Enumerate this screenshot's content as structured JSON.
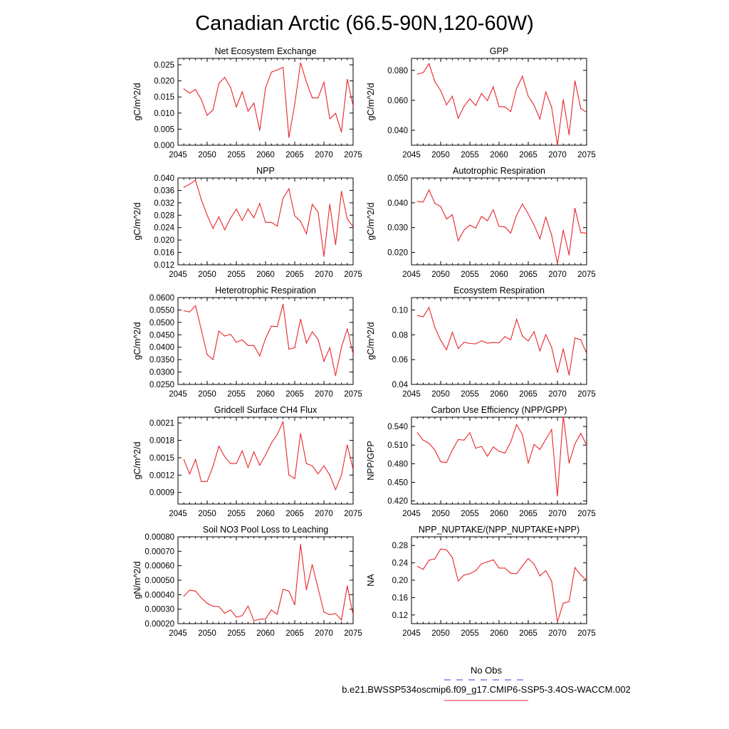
{
  "title": "Canadian Arctic (66.5-90N,120-60W)",
  "colors": {
    "model_line": "#e8262a",
    "obs_line": "#3b3bd6",
    "axis": "#000000"
  },
  "legend": {
    "obs_label": "No Obs",
    "model_label": "b.e21.BWSSP534oscmip6.f09_g17.CMIP6-SSP5-3.4OS-WACCM.002"
  },
  "chart_data": [
    {
      "type": "line",
      "title": "Net Ecosystem Exchange",
      "ylabel": "gC/m^2/d",
      "xlim": [
        2045,
        2075
      ],
      "ylim": [
        0.0,
        0.027
      ],
      "xticks": [
        "2045",
        "2050",
        "2055",
        "2060",
        "2065",
        "2070",
        "2075"
      ],
      "yticks": [
        0.0,
        0.005,
        0.01,
        0.015,
        0.02,
        0.025
      ],
      "ytick_labels": [
        "0.000",
        "0.005",
        "0.010",
        "0.015",
        "0.020",
        "0.025"
      ],
      "x": [
        2046,
        2047,
        2048,
        2049,
        2050,
        2051,
        2052,
        2053,
        2054,
        2055,
        2056,
        2057,
        2058,
        2059,
        2060,
        2061,
        2062,
        2063,
        2064,
        2065,
        2066,
        2067,
        2068,
        2069,
        2070,
        2071,
        2072,
        2073,
        2074,
        2075
      ],
      "values": [
        0.0175,
        0.0162,
        0.0173,
        0.0142,
        0.0093,
        0.011,
        0.0192,
        0.0211,
        0.018,
        0.0119,
        0.0166,
        0.0106,
        0.0131,
        0.0046,
        0.0178,
        0.0227,
        0.0234,
        0.0242,
        0.0024,
        0.0128,
        0.0256,
        0.0197,
        0.0147,
        0.0147,
        0.0196,
        0.0082,
        0.0099,
        0.0041,
        0.0205,
        0.0122
      ]
    },
    {
      "type": "line",
      "title": "GPP",
      "ylabel": "gC/m^2/d",
      "xlim": [
        2045,
        2075
      ],
      "ylim": [
        0.03,
        0.088
      ],
      "xticks": [
        "2045",
        "2050",
        "2055",
        "2060",
        "2065",
        "2070",
        "2075"
      ],
      "yticks": [
        0.04,
        0.06,
        0.08
      ],
      "ytick_labels": [
        "0.040",
        "0.060",
        "0.080"
      ],
      "x": [
        2046,
        2047,
        2048,
        2049,
        2050,
        2051,
        2052,
        2053,
        2054,
        2055,
        2056,
        2057,
        2058,
        2059,
        2060,
        2061,
        2062,
        2063,
        2064,
        2065,
        2066,
        2067,
        2068,
        2069,
        2070,
        2071,
        2072,
        2073,
        2074,
        2075
      ],
      "values": [
        0.0775,
        0.0785,
        0.0845,
        0.0725,
        0.0665,
        0.057,
        0.0627,
        0.048,
        0.056,
        0.061,
        0.0565,
        0.0645,
        0.0598,
        0.069,
        0.0557,
        0.0557,
        0.0525,
        0.068,
        0.076,
        0.0627,
        0.0567,
        0.0475,
        0.0655,
        0.0555,
        0.03,
        0.0605,
        0.037,
        0.073,
        0.0545,
        0.052
      ]
    },
    {
      "type": "line",
      "title": "NPP",
      "ylabel": "gC/m^2/d",
      "xlim": [
        2045,
        2075
      ],
      "ylim": [
        0.012,
        0.04
      ],
      "xticks": [
        "2045",
        "2050",
        "2055",
        "2060",
        "2065",
        "2070",
        "2075"
      ],
      "yticks": [
        0.012,
        0.016,
        0.02,
        0.024,
        0.028,
        0.032,
        0.036,
        0.04
      ],
      "ytick_labels": [
        "0.012",
        "0.016",
        "0.020",
        "0.024",
        "0.028",
        "0.032",
        "0.036",
        "0.040"
      ],
      "x": [
        2046,
        2047,
        2048,
        2049,
        2050,
        2051,
        2052,
        2053,
        2054,
        2055,
        2056,
        2057,
        2058,
        2059,
        2060,
        2061,
        2062,
        2063,
        2064,
        2065,
        2066,
        2067,
        2068,
        2069,
        2070,
        2071,
        2072,
        2073,
        2074,
        2075
      ],
      "values": [
        0.037,
        0.038,
        0.0393,
        0.033,
        0.028,
        0.0237,
        0.0275,
        0.0233,
        0.027,
        0.03,
        0.0263,
        0.03,
        0.0272,
        0.0318,
        0.0257,
        0.0257,
        0.0245,
        0.0335,
        0.0365,
        0.0278,
        0.026,
        0.022,
        0.0315,
        0.029,
        0.0147,
        0.0315,
        0.0185,
        0.0357,
        0.0268,
        0.0243
      ]
    },
    {
      "type": "line",
      "title": "Autotrophic Respiration",
      "ylabel": "gC/m^2/d",
      "xlim": [
        2045,
        2075
      ],
      "ylim": [
        0.015,
        0.05
      ],
      "xticks": [
        "2045",
        "2050",
        "2055",
        "2060",
        "2065",
        "2070",
        "2075"
      ],
      "yticks": [
        0.02,
        0.03,
        0.04,
        0.05
      ],
      "ytick_labels": [
        "0.020",
        "0.030",
        "0.040",
        "0.050"
      ],
      "x": [
        2046,
        2047,
        2048,
        2049,
        2050,
        2051,
        2052,
        2053,
        2054,
        2055,
        2056,
        2057,
        2058,
        2059,
        2060,
        2061,
        2062,
        2063,
        2064,
        2065,
        2066,
        2067,
        2068,
        2069,
        2070,
        2071,
        2072,
        2073,
        2074,
        2075
      ],
      "values": [
        0.0405,
        0.0403,
        0.0452,
        0.0398,
        0.0385,
        0.0335,
        0.0352,
        0.0247,
        0.029,
        0.031,
        0.0298,
        0.0345,
        0.0328,
        0.0372,
        0.0305,
        0.0303,
        0.0278,
        0.035,
        0.0395,
        0.0355,
        0.031,
        0.0255,
        0.0342,
        0.027,
        0.0155,
        0.029,
        0.019,
        0.0378,
        0.028,
        0.0277
      ]
    },
    {
      "type": "line",
      "title": "Heterotrophic Respiration",
      "ylabel": "gC/m^2/d",
      "xlim": [
        2045,
        2075
      ],
      "ylim": [
        0.025,
        0.06
      ],
      "xticks": [
        "2045",
        "2050",
        "2055",
        "2060",
        "2065",
        "2070",
        "2075"
      ],
      "yticks": [
        0.025,
        0.03,
        0.035,
        0.04,
        0.045,
        0.05,
        0.055,
        0.06
      ],
      "ytick_labels": [
        "0.0250",
        "0.0300",
        "0.0350",
        "0.0400",
        "0.0450",
        "0.0500",
        "0.0550",
        "0.0600"
      ],
      "x": [
        2046,
        2047,
        2048,
        2049,
        2050,
        2051,
        2052,
        2053,
        2054,
        2055,
        2056,
        2057,
        2058,
        2059,
        2060,
        2061,
        2062,
        2063,
        2064,
        2065,
        2066,
        2067,
        2068,
        2069,
        2070,
        2071,
        2072,
        2073,
        2074,
        2075
      ],
      "values": [
        0.0547,
        0.0542,
        0.0567,
        0.047,
        0.037,
        0.035,
        0.0465,
        0.0445,
        0.0452,
        0.042,
        0.043,
        0.0407,
        0.0407,
        0.0365,
        0.0435,
        0.0485,
        0.0483,
        0.0573,
        0.0392,
        0.0398,
        0.0513,
        0.0417,
        0.0462,
        0.0432,
        0.0343,
        0.0398,
        0.0285,
        0.04,
        0.0473,
        0.0373
      ]
    },
    {
      "type": "line",
      "title": "Ecosystem Respiration",
      "ylabel": "gC/m^2/d",
      "xlim": [
        2045,
        2075
      ],
      "ylim": [
        0.04,
        0.11
      ],
      "xticks": [
        "2045",
        "2050",
        "2055",
        "2060",
        "2065",
        "2070",
        "2075"
      ],
      "yticks": [
        0.04,
        0.06,
        0.08,
        0.1
      ],
      "ytick_labels": [
        "0.04",
        "0.06",
        "0.08",
        "0.10"
      ],
      "x": [
        2046,
        2047,
        2048,
        2049,
        2050,
        2051,
        2052,
        2053,
        2054,
        2055,
        2056,
        2057,
        2058,
        2059,
        2060,
        2061,
        2062,
        2063,
        2064,
        2065,
        2066,
        2067,
        2068,
        2069,
        2070,
        2071,
        2072,
        2073,
        2074,
        2075
      ],
      "values": [
        0.0955,
        0.0945,
        0.102,
        0.086,
        0.0755,
        0.068,
        0.082,
        0.069,
        0.074,
        0.073,
        0.0727,
        0.0752,
        0.0732,
        0.0738,
        0.0735,
        0.0785,
        0.076,
        0.0925,
        0.079,
        0.075,
        0.0825,
        0.067,
        0.0802,
        0.07,
        0.0495,
        0.0688,
        0.0475,
        0.0775,
        0.076,
        0.065
      ]
    },
    {
      "type": "line",
      "title": "Gridcell Surface CH4 Flux",
      "ylabel": "gC/m^2/d",
      "xlim": [
        2045,
        2075
      ],
      "ylim": [
        0.0007,
        0.0022
      ],
      "xticks": [
        "2045",
        "2050",
        "2055",
        "2060",
        "2065",
        "2070",
        "2075"
      ],
      "yticks": [
        0.0009,
        0.0012,
        0.0015,
        0.0018,
        0.0021
      ],
      "ytick_labels": [
        "0.0009",
        "0.0012",
        "0.0015",
        "0.0018",
        "0.0021"
      ],
      "x": [
        2046,
        2047,
        2048,
        2049,
        2050,
        2051,
        2052,
        2053,
        2054,
        2055,
        2056,
        2057,
        2058,
        2059,
        2060,
        2061,
        2062,
        2063,
        2064,
        2065,
        2066,
        2067,
        2068,
        2069,
        2070,
        2071,
        2072,
        2073,
        2074,
        2075
      ],
      "values": [
        0.00147,
        0.00122,
        0.00147,
        0.00109,
        0.00109,
        0.00135,
        0.0017,
        0.00152,
        0.0014,
        0.0014,
        0.00162,
        0.00133,
        0.0016,
        0.00137,
        0.00155,
        0.00175,
        0.0019,
        0.00212,
        0.0012,
        0.00114,
        0.00192,
        0.0014,
        0.00136,
        0.00122,
        0.00136,
        0.0012,
        0.00095,
        0.0012,
        0.00172,
        0.0013
      ]
    },
    {
      "type": "line",
      "title": "Carbon Use Efficiency (NPP/GPP)",
      "ylabel": "NPP/GPP",
      "xlim": [
        2045,
        2075
      ],
      "ylim": [
        0.415,
        0.555
      ],
      "xticks": [
        "2045",
        "2050",
        "2055",
        "2060",
        "2065",
        "2070",
        "2075"
      ],
      "yticks": [
        0.42,
        0.45,
        0.48,
        0.51,
        0.54
      ],
      "ytick_labels": [
        "0.420",
        "0.450",
        "0.480",
        "0.510",
        "0.540"
      ],
      "x": [
        2046,
        2047,
        2048,
        2049,
        2050,
        2051,
        2052,
        2053,
        2054,
        2055,
        2056,
        2057,
        2058,
        2059,
        2060,
        2061,
        2062,
        2063,
        2064,
        2065,
        2066,
        2067,
        2068,
        2069,
        2070,
        2071,
        2072,
        2073,
        2074,
        2075
      ],
      "values": [
        0.53,
        0.518,
        0.513,
        0.502,
        0.483,
        0.482,
        0.502,
        0.519,
        0.518,
        0.53,
        0.505,
        0.508,
        0.492,
        0.507,
        0.5,
        0.497,
        0.515,
        0.543,
        0.527,
        0.481,
        0.511,
        0.503,
        0.519,
        0.535,
        0.428,
        0.558,
        0.481,
        0.512,
        0.529,
        0.51
      ]
    },
    {
      "type": "line",
      "title": "Soil NO3 Pool Loss to Leaching",
      "ylabel": "gN/m^2/d",
      "xlim": [
        2045,
        2075
      ],
      "ylim": [
        0.0002,
        0.0008
      ],
      "xticks": [
        "2045",
        "2050",
        "2055",
        "2060",
        "2065",
        "2070",
        "2075"
      ],
      "yticks": [
        0.0002,
        0.0003,
        0.0004,
        0.0005,
        0.0006,
        0.0007,
        0.0008
      ],
      "ytick_labels": [
        "0.00020",
        "0.00030",
        "0.00040",
        "0.00050",
        "0.00060",
        "0.00070",
        "0.00080"
      ],
      "x": [
        2046,
        2047,
        2048,
        2049,
        2050,
        2051,
        2052,
        2053,
        2054,
        2055,
        2056,
        2057,
        2058,
        2059,
        2060,
        2061,
        2062,
        2063,
        2064,
        2065,
        2066,
        2067,
        2068,
        2069,
        2070,
        2071,
        2072,
        2073,
        2074,
        2075
      ],
      "values": [
        0.00039,
        0.000432,
        0.000425,
        0.000378,
        0.00034,
        0.00032,
        0.000318,
        0.000272,
        0.000295,
        0.000245,
        0.000255,
        0.000322,
        0.00022,
        0.00023,
        0.000232,
        0.000295,
        0.000265,
        0.000438,
        0.000425,
        0.00033,
        0.000748,
        0.000433,
        0.000608,
        0.000445,
        0.00028,
        0.000262,
        0.00027,
        0.000225,
        0.00046,
        0.00026
      ]
    },
    {
      "type": "line",
      "title": "NPP_NUPTAKE/(NPP_NUPTAKE+NPP)",
      "ylabel": "NA",
      "xlim": [
        2045,
        2075
      ],
      "ylim": [
        0.1,
        0.3
      ],
      "xticks": [
        "2045",
        "2050",
        "2055",
        "2060",
        "2065",
        "2070",
        "2075"
      ],
      "yticks": [
        0.12,
        0.16,
        0.2,
        0.24,
        0.28
      ],
      "ytick_labels": [
        "0.12",
        "0.16",
        "0.20",
        "0.24",
        "0.28"
      ],
      "x": [
        2046,
        2047,
        2048,
        2049,
        2050,
        2051,
        2052,
        2053,
        2054,
        2055,
        2056,
        2057,
        2058,
        2059,
        2060,
        2061,
        2062,
        2063,
        2064,
        2065,
        2066,
        2067,
        2068,
        2069,
        2070,
        2071,
        2072,
        2073,
        2074,
        2075
      ],
      "values": [
        0.232,
        0.225,
        0.246,
        0.249,
        0.272,
        0.27,
        0.252,
        0.198,
        0.212,
        0.215,
        0.222,
        0.238,
        0.242,
        0.247,
        0.228,
        0.228,
        0.216,
        0.215,
        0.233,
        0.25,
        0.237,
        0.21,
        0.222,
        0.198,
        0.104,
        0.147,
        0.151,
        0.229,
        0.212,
        0.2
      ]
    }
  ]
}
